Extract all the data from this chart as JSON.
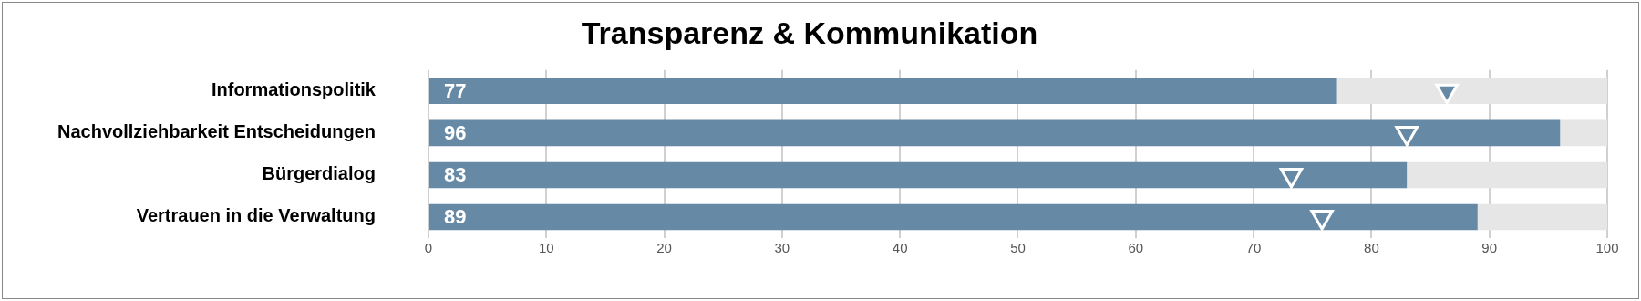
{
  "chart_data": {
    "type": "bar",
    "orientation": "horizontal",
    "title": "Transparenz & Kommunikation",
    "categories": [
      "Informationspolitik",
      "Nachvollziehbarkeit Entscheidungen",
      "Bürgerdialog",
      "Vertrauen in die Verwaltung"
    ],
    "series": [
      {
        "color": "#6689a6",
        "values": [
          77,
          96,
          83,
          89
        ],
        "data_labels": true
      },
      {
        "color": "#e6e6e6",
        "values": [
          23,
          4,
          17,
          11
        ]
      },
      {
        "type": "scatter",
        "marker": "triangle",
        "color": "#6689a6",
        "values": [
          86.4,
          83.0,
          73.2,
          75.8
        ]
      }
    ],
    "stacked": true,
    "xlim": [
      0,
      100
    ],
    "xticks": [
      0,
      10,
      20,
      30,
      40,
      50,
      60,
      70,
      80,
      90,
      100
    ],
    "grid": "x",
    "legend": false
  }
}
